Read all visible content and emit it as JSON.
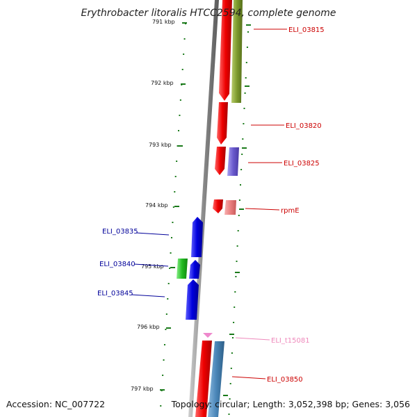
{
  "title": "Erythrobacter litoralis HTCC2594, complete genome",
  "footer": {
    "accession": "Accession: NC_007722",
    "summary": "Topology: circular; Length: 3,052,398 bp; Genes: 3,056"
  },
  "colors": {
    "backbone": "#8a8a8a",
    "ticks": "#1a7a1a",
    "red_gene": "#ee0000",
    "olive_gene": "#7d9a2e",
    "purple_gene": "#6a5acd",
    "pink_gene": "#ea7f7f",
    "blue_gene": "#0000dd",
    "green_gene": "#22bb22",
    "trna_gene": "#ee88cc",
    "steel_gene": "#4a86b8",
    "label_red": "#cc0000",
    "label_blue": "#000099",
    "label_pink": "#ee88bb"
  },
  "scale_labels": [
    "791 kbp",
    "792 kbp",
    "793 kbp",
    "794 kbp",
    "795 kbp",
    "796 kbp",
    "797 kbp"
  ],
  "gene_labels": [
    {
      "name": "ELI_03815",
      "color": "#cc0000"
    },
    {
      "name": "ELI_03820",
      "color": "#cc0000"
    },
    {
      "name": "ELI_03825",
      "color": "#cc0000"
    },
    {
      "name": "rpmE",
      "color": "#cc0000"
    },
    {
      "name": "ELI_03835",
      "color": "#000099"
    },
    {
      "name": "ELI_03840",
      "color": "#000099"
    },
    {
      "name": "ELI_03845",
      "color": "#000099"
    },
    {
      "name": "ELI_t15081",
      "color": "#ee88bb"
    },
    {
      "name": "ELI_03850",
      "color": "#cc0000"
    }
  ]
}
